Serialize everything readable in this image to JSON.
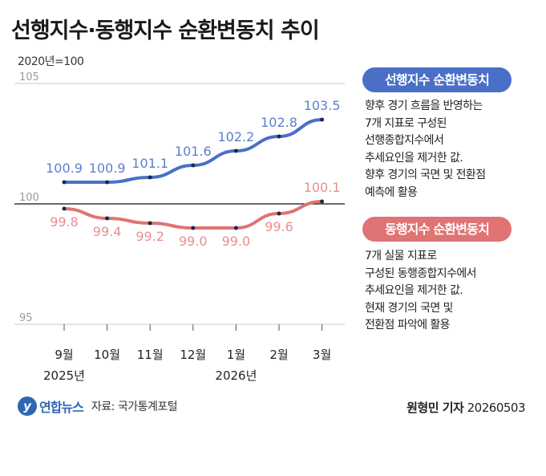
{
  "header": {
    "title": "선행지수·동행지수 순환변동치 추이",
    "unit": "2020년=100"
  },
  "chart_data": {
    "type": "line",
    "categories": [
      "9월",
      "10월",
      "11월",
      "12월",
      "1월",
      "2월",
      "3월"
    ],
    "year_labels": [
      {
        "text": "2025년",
        "at": 0
      },
      {
        "text": "2026년",
        "at": 4
      }
    ],
    "series": [
      {
        "name": "선행지수 순환변동치",
        "color": "#4a6fc7",
        "values": [
          100.9,
          100.9,
          101.1,
          101.6,
          102.2,
          102.8,
          103.5
        ]
      },
      {
        "name": "동행지수 순환변동치",
        "color": "#e07373",
        "values": [
          99.8,
          99.4,
          99.2,
          99.0,
          99.0,
          99.6,
          100.1
        ]
      }
    ],
    "value_labels": [
      [
        "100.9",
        "100.9",
        "101.1",
        "101.6",
        "102.2",
        "102.8",
        "103.5"
      ],
      [
        "99.8",
        "99.4",
        "99.2",
        "99.0",
        "99.0",
        "99.6",
        "100.1"
      ]
    ],
    "yticks": [
      {
        "value": 105,
        "label": "105"
      },
      {
        "value": 100,
        "label": "100"
      },
      {
        "value": 95,
        "label": "95"
      }
    ],
    "ylim": [
      95,
      105
    ],
    "grid": true
  },
  "legend": {
    "leading": {
      "label": "선행지수 순환변동치",
      "lines": [
        "향후 경기 흐름을 반영하는",
        "7개 지표로 구성된",
        "선행종합지수에서",
        "추세요인을 제거한 값.",
        "향후 경기의 국면 및 전환점",
        "예측에 활용"
      ]
    },
    "coincident": {
      "label": "동행지수 순환변동치",
      "lines": [
        "7개 실물 지표로",
        "구성된 동행종합지수에서",
        "추세요인을 제거한 값.",
        "현재 경기의 국면 및",
        "전환점 파악에 활용"
      ]
    }
  },
  "footer": {
    "logo_mark": "y",
    "logo_name": "연합뉴스",
    "source": "자료: 국가통계포털",
    "author": "원형민 기자",
    "date": "20260503"
  }
}
